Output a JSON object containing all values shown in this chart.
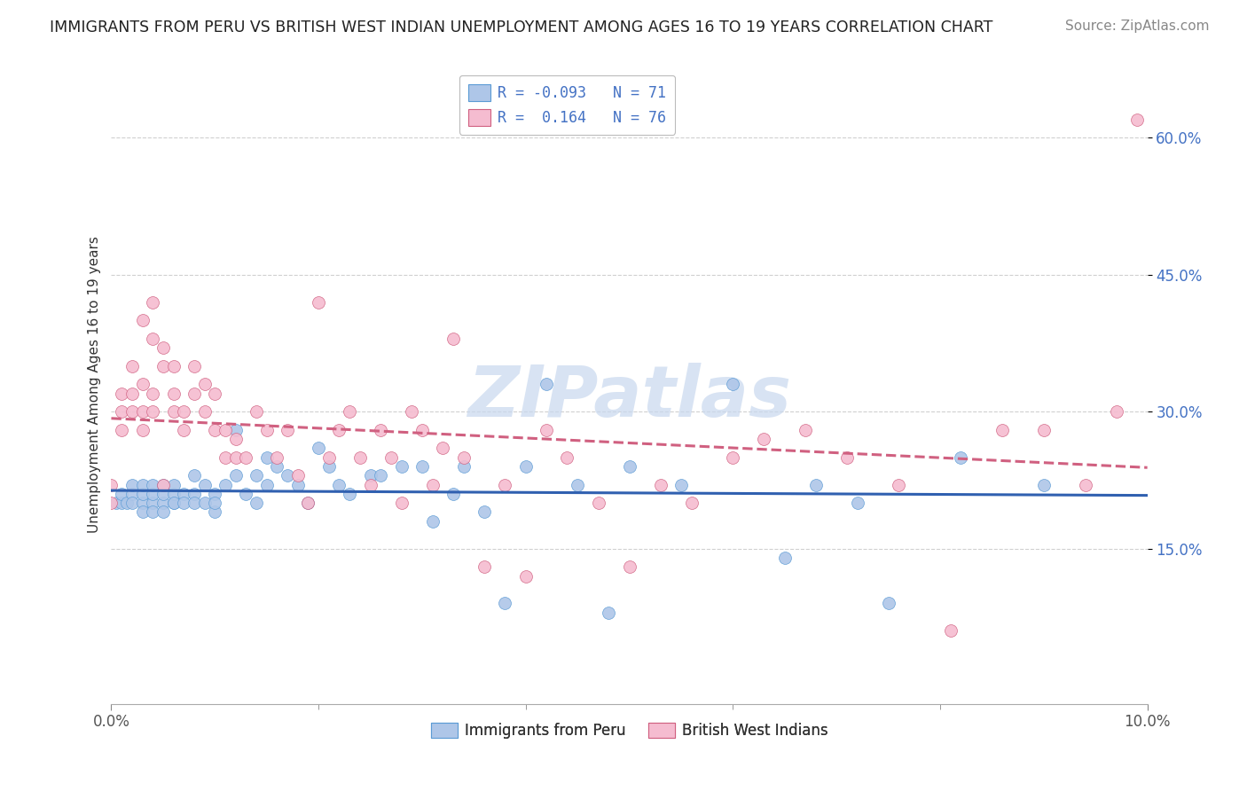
{
  "title": "IMMIGRANTS FROM PERU VS BRITISH WEST INDIAN UNEMPLOYMENT AMONG AGES 16 TO 19 YEARS CORRELATION CHART",
  "source": "Source: ZipAtlas.com",
  "ylabel": "Unemployment Among Ages 16 to 19 years",
  "xlabel_label": "Immigrants from Peru",
  "x_label_right": "British West Indians",
  "xlim": [
    0.0,
    0.1
  ],
  "ylim": [
    -0.02,
    0.68
  ],
  "xtick_positions": [
    0.0,
    0.1
  ],
  "xtick_labels": [
    "0.0%",
    "10.0%"
  ],
  "yticks": [
    0.15,
    0.3,
    0.45,
    0.6
  ],
  "ytick_labels": [
    "15.0%",
    "30.0%",
    "45.0%",
    "60.0%"
  ],
  "grid_color": "#d0d0d0",
  "background_color": "#ffffff",
  "series": [
    {
      "name": "Immigrants from Peru",
      "color": "#aec6e8",
      "edge_color": "#5b9bd5",
      "R": -0.093,
      "N": 71,
      "trend_color": "#3060b0",
      "trend_linestyle": "solid",
      "x": [
        0.0005,
        0.001,
        0.001,
        0.0015,
        0.002,
        0.002,
        0.002,
        0.003,
        0.003,
        0.003,
        0.003,
        0.004,
        0.004,
        0.004,
        0.004,
        0.005,
        0.005,
        0.005,
        0.005,
        0.006,
        0.006,
        0.006,
        0.006,
        0.007,
        0.007,
        0.008,
        0.008,
        0.008,
        0.009,
        0.009,
        0.01,
        0.01,
        0.01,
        0.011,
        0.012,
        0.012,
        0.013,
        0.014,
        0.014,
        0.015,
        0.015,
        0.016,
        0.017,
        0.018,
        0.019,
        0.02,
        0.021,
        0.022,
        0.023,
        0.025,
        0.026,
        0.028,
        0.03,
        0.031,
        0.033,
        0.034,
        0.036,
        0.038,
        0.04,
        0.042,
        0.045,
        0.048,
        0.05,
        0.055,
        0.06,
        0.065,
        0.068,
        0.072,
        0.075,
        0.082,
        0.09
      ],
      "y": [
        0.2,
        0.2,
        0.21,
        0.2,
        0.21,
        0.2,
        0.22,
        0.2,
        0.21,
        0.19,
        0.22,
        0.2,
        0.21,
        0.19,
        0.22,
        0.2,
        0.21,
        0.19,
        0.22,
        0.2,
        0.21,
        0.22,
        0.2,
        0.21,
        0.2,
        0.21,
        0.2,
        0.23,
        0.2,
        0.22,
        0.19,
        0.21,
        0.2,
        0.22,
        0.28,
        0.23,
        0.21,
        0.2,
        0.23,
        0.22,
        0.25,
        0.24,
        0.23,
        0.22,
        0.2,
        0.26,
        0.24,
        0.22,
        0.21,
        0.23,
        0.23,
        0.24,
        0.24,
        0.18,
        0.21,
        0.24,
        0.19,
        0.09,
        0.24,
        0.33,
        0.22,
        0.08,
        0.24,
        0.22,
        0.33,
        0.14,
        0.22,
        0.2,
        0.09,
        0.25,
        0.22
      ]
    },
    {
      "name": "British West Indians",
      "color": "#f5bcd0",
      "edge_color": "#d06080",
      "R": 0.164,
      "N": 76,
      "trend_color": "#d06080",
      "trend_linestyle": "dashed",
      "x": [
        0.0,
        0.0,
        0.001,
        0.001,
        0.001,
        0.002,
        0.002,
        0.002,
        0.003,
        0.003,
        0.003,
        0.003,
        0.004,
        0.004,
        0.004,
        0.004,
        0.005,
        0.005,
        0.005,
        0.006,
        0.006,
        0.006,
        0.007,
        0.007,
        0.008,
        0.008,
        0.009,
        0.009,
        0.01,
        0.01,
        0.011,
        0.011,
        0.012,
        0.012,
        0.013,
        0.014,
        0.015,
        0.016,
        0.017,
        0.018,
        0.019,
        0.02,
        0.021,
        0.022,
        0.023,
        0.024,
        0.025,
        0.026,
        0.027,
        0.028,
        0.029,
        0.03,
        0.031,
        0.032,
        0.033,
        0.034,
        0.036,
        0.038,
        0.04,
        0.042,
        0.044,
        0.047,
        0.05,
        0.053,
        0.056,
        0.06,
        0.063,
        0.067,
        0.071,
        0.076,
        0.081,
        0.086,
        0.09,
        0.094,
        0.097,
        0.099
      ],
      "y": [
        0.22,
        0.2,
        0.28,
        0.3,
        0.32,
        0.3,
        0.32,
        0.35,
        0.28,
        0.3,
        0.33,
        0.4,
        0.3,
        0.32,
        0.38,
        0.42,
        0.35,
        0.37,
        0.22,
        0.3,
        0.32,
        0.35,
        0.3,
        0.28,
        0.32,
        0.35,
        0.3,
        0.33,
        0.28,
        0.32,
        0.25,
        0.28,
        0.25,
        0.27,
        0.25,
        0.3,
        0.28,
        0.25,
        0.28,
        0.23,
        0.2,
        0.42,
        0.25,
        0.28,
        0.3,
        0.25,
        0.22,
        0.28,
        0.25,
        0.2,
        0.3,
        0.28,
        0.22,
        0.26,
        0.38,
        0.25,
        0.13,
        0.22,
        0.12,
        0.28,
        0.25,
        0.2,
        0.13,
        0.22,
        0.2,
        0.25,
        0.27,
        0.28,
        0.25,
        0.22,
        0.06,
        0.28,
        0.28,
        0.22,
        0.3,
        0.62
      ]
    }
  ],
  "watermark": "ZIPatlas",
  "watermark_color": "#c8d8ee",
  "title_fontsize": 12.5,
  "axis_label_fontsize": 11,
  "tick_fontsize": 12,
  "legend_fontsize": 12,
  "source_fontsize": 11
}
